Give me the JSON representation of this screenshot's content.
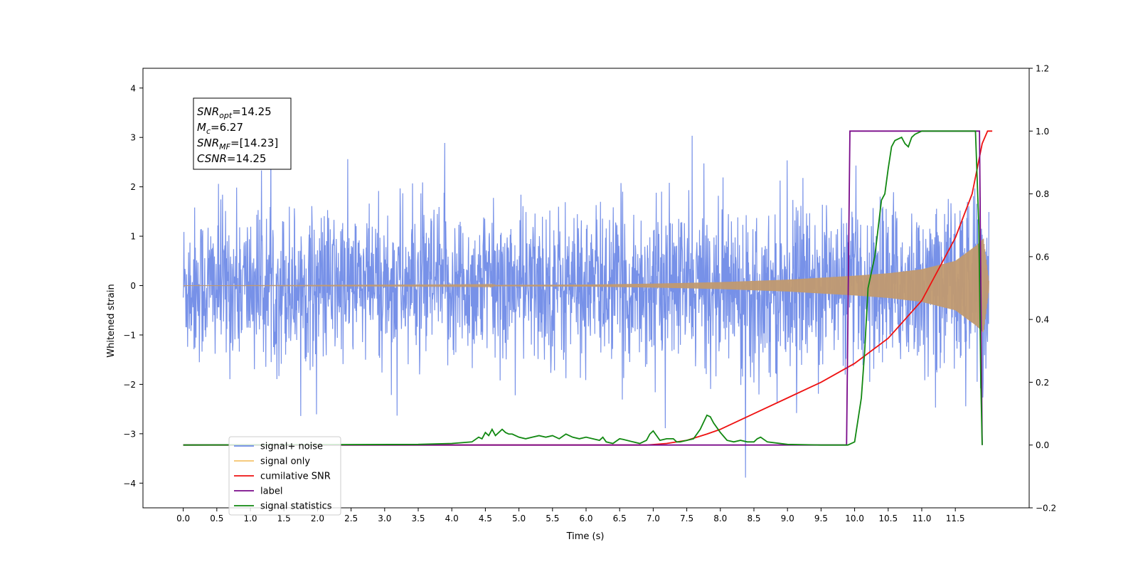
{
  "chart_data": {
    "type": "line",
    "xlabel": "Time (s)",
    "ylabel_left": "Whitened strain",
    "xlim": [
      -0.6,
      12.6
    ],
    "ylim_left": [
      -4.5,
      4.4
    ],
    "ylim_right": [
      -0.2,
      1.2
    ],
    "x_ticks": [
      "0.0",
      "0.5",
      "1.0",
      "1.5",
      "2.0",
      "2.5",
      "3.0",
      "3.5",
      "4.0",
      "4.5",
      "5.0",
      "5.5",
      "6.0",
      "6.5",
      "7.0",
      "7.5",
      "8.0",
      "8.5",
      "9.0",
      "9.5",
      "10.0",
      "10.5",
      "11.0",
      "11.5"
    ],
    "y_left_ticks": [
      "−4",
      "−3",
      "−2",
      "−1",
      "0",
      "1",
      "2",
      "3",
      "4"
    ],
    "y_right_ticks": [
      "−0.2",
      "0.0",
      "0.2",
      "0.4",
      "0.6",
      "0.8",
      "1.0",
      "1.2"
    ],
    "grid": false,
    "legend_position": "lower-left",
    "annotation": {
      "lines": [
        {
          "base": "SNR",
          "sub": "opt",
          "value": "=14.25"
        },
        {
          "base": "M",
          "sub": "c",
          "value": "=6.27"
        },
        {
          "base": "SNR",
          "sub": "MF",
          "value": "=[14.23]"
        },
        {
          "base": "CSNR",
          "sub": "",
          "value": "=14.25"
        }
      ]
    },
    "series": [
      {
        "name": "signal+ noise",
        "color": "#6b88e6",
        "axis": "left",
        "description_values": {
          "noise_std": 0.78,
          "x_range": [
            0.0,
            12.0
          ]
        }
      },
      {
        "name": "signal only",
        "color": "#f5c26b",
        "axis": "left",
        "envelope": {
          "x": [
            0,
            2,
            4,
            6,
            7,
            8,
            9,
            10,
            10.5,
            11,
            11.5,
            11.8,
            11.92,
            12.0
          ],
          "amp": [
            0.0,
            0.005,
            0.01,
            0.02,
            0.04,
            0.07,
            0.12,
            0.2,
            0.25,
            0.33,
            0.5,
            0.8,
            0.95,
            0.1
          ]
        }
      },
      {
        "name": "cumilative SNR",
        "color": "#ee1111",
        "axis": "right",
        "x": [
          0,
          6.9,
          7.2,
          7.5,
          7.8,
          8.0,
          8.5,
          9.0,
          9.5,
          10.0,
          10.5,
          11.0,
          11.5,
          11.75,
          11.9,
          11.98,
          12.05
        ],
        "y": [
          0,
          0,
          0.005,
          0.015,
          0.035,
          0.05,
          0.1,
          0.15,
          0.2,
          0.26,
          0.34,
          0.46,
          0.66,
          0.8,
          0.96,
          1.0,
          1.0
        ]
      },
      {
        "name": "label",
        "color": "#7a0a8a",
        "axis": "right",
        "x": [
          0,
          9.88,
          9.93,
          11.84,
          11.86,
          11.9
        ],
        "y": [
          0,
          0,
          1.0,
          1.0,
          1.0,
          0.0
        ]
      },
      {
        "name": "signal statistics",
        "color": "#118811",
        "axis": "right",
        "x": [
          0,
          3.5,
          4.0,
          4.3,
          4.4,
          4.45,
          4.5,
          4.55,
          4.6,
          4.65,
          4.7,
          4.75,
          4.8,
          4.85,
          4.9,
          5.0,
          5.1,
          5.2,
          5.3,
          5.4,
          5.5,
          5.6,
          5.7,
          5.8,
          5.9,
          6.0,
          6.2,
          6.25,
          6.3,
          6.4,
          6.5,
          6.55,
          6.7,
          6.8,
          6.9,
          6.95,
          7.0,
          7.05,
          7.1,
          7.2,
          7.3,
          7.35,
          7.4,
          7.5,
          7.6,
          7.7,
          7.8,
          7.85,
          7.9,
          8.0,
          8.1,
          8.2,
          8.3,
          8.4,
          8.5,
          8.55,
          8.6,
          8.7,
          9.0,
          9.5,
          9.9,
          10.0,
          10.1,
          10.15,
          10.2,
          10.3,
          10.4,
          10.45,
          10.5,
          10.55,
          10.6,
          10.7,
          10.75,
          10.8,
          10.85,
          10.9,
          11.0,
          11.1,
          11.2,
          11.4,
          11.6,
          11.8,
          11.85,
          11.88,
          11.9
        ],
        "y": [
          0,
          0.002,
          0.005,
          0.01,
          0.025,
          0.02,
          0.04,
          0.03,
          0.05,
          0.03,
          0.04,
          0.05,
          0.04,
          0.035,
          0.035,
          0.025,
          0.02,
          0.025,
          0.03,
          0.025,
          0.03,
          0.02,
          0.035,
          0.025,
          0.02,
          0.025,
          0.015,
          0.025,
          0.01,
          0.005,
          0.02,
          0.018,
          0.01,
          0.005,
          0.015,
          0.035,
          0.045,
          0.03,
          0.015,
          0.02,
          0.02,
          0.01,
          0.01,
          0.015,
          0.02,
          0.05,
          0.095,
          0.09,
          0.07,
          0.04,
          0.015,
          0.01,
          0.015,
          0.01,
          0.01,
          0.02,
          0.025,
          0.01,
          0.002,
          0.0,
          0.0,
          0.01,
          0.15,
          0.3,
          0.5,
          0.6,
          0.78,
          0.8,
          0.88,
          0.95,
          0.97,
          0.98,
          0.96,
          0.95,
          0.98,
          0.99,
          1.0,
          1.0,
          1.0,
          1.0,
          1.0,
          1.0,
          0.7,
          0.2,
          0.0
        ]
      }
    ]
  }
}
